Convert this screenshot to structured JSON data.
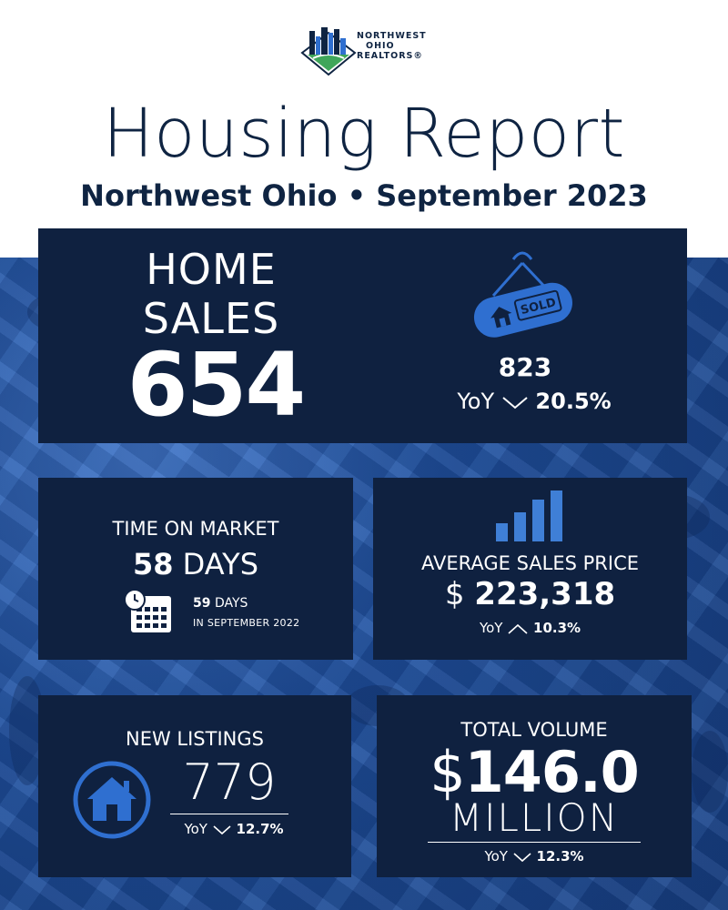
{
  "logo": {
    "line1": "NORTHWEST",
    "line2": "OHIO",
    "line3": "REALTORS®"
  },
  "title": "Housing Report",
  "subtitle": "Northwest Ohio • September 2023",
  "home_sales": {
    "label_line1": "HOME",
    "label_line2": "SALES",
    "value": "654",
    "sign_text": "SOLD",
    "previous_value": "823",
    "yoy_label": "YoY",
    "yoy_change": "20.5%",
    "yoy_direction": "down"
  },
  "time_on_market": {
    "label": "TIME ON MARKET",
    "value": "58",
    "unit": "DAYS",
    "previous_value": "59",
    "previous_unit": "DAYS",
    "previous_period": "IN SEPTEMBER 2022"
  },
  "average_sales_price": {
    "label": "AVERAGE SALES PRICE",
    "currency": "$",
    "value": "223,318",
    "yoy_label": "YoY",
    "yoy_change": "10.3%",
    "yoy_direction": "up"
  },
  "new_listings": {
    "label": "NEW LISTINGS",
    "value": "779",
    "yoy_label": "YoY",
    "yoy_change": "12.7%",
    "yoy_direction": "down"
  },
  "total_volume": {
    "label": "TOTAL VOLUME",
    "currency": "$",
    "value": "146.0",
    "unit": "MILLION",
    "yoy_label": "YoY",
    "yoy_change": "12.3%",
    "yoy_direction": "down"
  },
  "colors": {
    "navy": "#0f2140",
    "title_navy": "#0f2442",
    "accent_blue": "#2f6fd0",
    "logo_green": "#3fa65a"
  },
  "icons": [
    "logo-skyline-icon",
    "sold-sign-icon",
    "calendar-clock-icon",
    "bar-chart-icon",
    "house-icon",
    "chevron-down-icon",
    "chevron-up-icon"
  ]
}
